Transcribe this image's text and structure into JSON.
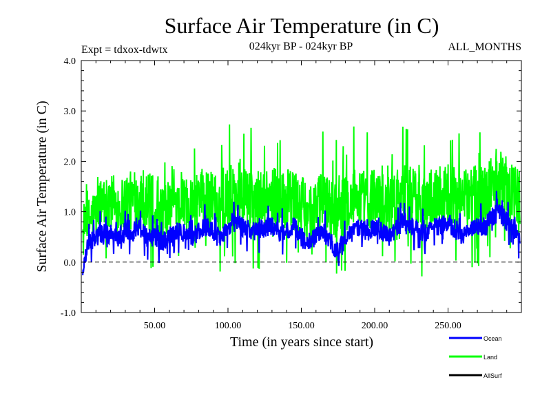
{
  "chart_data": {
    "type": "line",
    "title": "Surface Air Temperature (in C)",
    "subtitle_left": "Expt = tdxox-tdwtx",
    "subtitle_center": "024kyr BP - 024kyr BP",
    "subtitle_right": "ALL_MONTHS",
    "xlabel": "Time (in years since start)",
    "ylabel": "Surface Air Temperature (in C)",
    "xlim": [
      0,
      300
    ],
    "ylim": [
      -1.0,
      4.0
    ],
    "x_ticks": [
      50,
      100,
      150,
      200,
      250
    ],
    "x_tick_labels": [
      "50.00",
      "100.00",
      "150.00",
      "200.00",
      "250.00"
    ],
    "y_ticks": [
      -1.0,
      0.0,
      1.0,
      2.0,
      3.0,
      4.0
    ],
    "y_tick_labels": [
      "-1.0",
      "0.0",
      "1.0",
      "2.0",
      "3.0",
      "4.0"
    ],
    "zero_line": {
      "value": 0.0,
      "style": "dashed"
    },
    "series": [
      {
        "name": "Land",
        "color": "#00ff00",
        "x": [
          1,
          5,
          10,
          15,
          20,
          25,
          30,
          35,
          40,
          45,
          50,
          55,
          60,
          65,
          70,
          75,
          80,
          85,
          90,
          95,
          100,
          105,
          110,
          115,
          120,
          125,
          130,
          135,
          140,
          145,
          150,
          155,
          160,
          165,
          170,
          175,
          180,
          185,
          190,
          195,
          200,
          205,
          210,
          215,
          220,
          225,
          230,
          235,
          240,
          245,
          250,
          255,
          260,
          265,
          270,
          275,
          280,
          285,
          290,
          295,
          299
        ],
        "mean": [
          0.5,
          0.8,
          1.0,
          1.2,
          1.2,
          1.1,
          1.2,
          1.2,
          1.3,
          1.2,
          1.1,
          1.0,
          1.1,
          1.2,
          1.2,
          1.1,
          1.2,
          1.3,
          1.2,
          1.1,
          1.3,
          1.4,
          1.3,
          1.2,
          1.2,
          1.3,
          1.3,
          1.2,
          1.2,
          1.3,
          1.1,
          1.0,
          1.1,
          1.2,
          1.1,
          1.0,
          1.2,
          1.3,
          1.3,
          1.2,
          1.3,
          1.2,
          1.1,
          1.3,
          1.4,
          1.3,
          1.2,
          1.2,
          1.3,
          1.3,
          1.4,
          1.3,
          1.2,
          1.3,
          1.4,
          1.3,
          1.5,
          1.6,
          1.5,
          1.4,
          1.3
        ],
        "spread": [
          0.9,
          0.9,
          1.0,
          1.0,
          1.1,
          1.1,
          1.1,
          1.1,
          1.2,
          1.1,
          1.1,
          1.0,
          1.0,
          1.1,
          1.1,
          1.1,
          1.0,
          1.1,
          1.1,
          1.1,
          1.1,
          1.2,
          1.1,
          1.1,
          1.1,
          1.1,
          1.2,
          1.1,
          1.1,
          1.1,
          1.1,
          1.1,
          1.1,
          1.1,
          1.1,
          1.1,
          1.1,
          1.1,
          1.1,
          1.1,
          1.1,
          1.1,
          1.1,
          1.1,
          1.1,
          1.1,
          1.1,
          1.1,
          1.1,
          1.1,
          1.1,
          1.1,
          1.1,
          1.1,
          1.1,
          1.1,
          1.1,
          1.1,
          1.1,
          1.1,
          1.1
        ]
      },
      {
        "name": "Ocean",
        "color": "#0000ff",
        "x": [
          1,
          5,
          10,
          15,
          20,
          25,
          30,
          35,
          40,
          45,
          50,
          55,
          60,
          65,
          70,
          75,
          80,
          85,
          90,
          95,
          100,
          105,
          110,
          115,
          120,
          125,
          130,
          135,
          140,
          145,
          150,
          155,
          160,
          165,
          170,
          175,
          180,
          185,
          190,
          195,
          200,
          205,
          210,
          215,
          220,
          225,
          230,
          235,
          240,
          245,
          250,
          255,
          260,
          265,
          270,
          275,
          280,
          285,
          290,
          295,
          299
        ],
        "mean": [
          -0.2,
          0.4,
          0.5,
          0.6,
          0.5,
          0.5,
          0.6,
          0.6,
          0.7,
          0.5,
          0.5,
          0.4,
          0.5,
          0.6,
          0.6,
          0.5,
          0.6,
          0.7,
          0.6,
          0.5,
          0.7,
          0.8,
          0.7,
          0.6,
          0.6,
          0.7,
          0.7,
          0.6,
          0.6,
          0.7,
          0.5,
          0.4,
          0.5,
          0.6,
          0.4,
          0.2,
          0.5,
          0.6,
          0.7,
          0.6,
          0.7,
          0.6,
          0.5,
          0.7,
          0.8,
          0.7,
          0.6,
          0.6,
          0.7,
          0.7,
          0.8,
          0.6,
          0.5,
          0.6,
          0.7,
          0.7,
          0.9,
          1.0,
          0.8,
          0.7,
          0.5
        ],
        "spread": [
          0.3,
          0.35,
          0.35,
          0.35,
          0.35,
          0.35,
          0.35,
          0.35,
          0.35,
          0.35,
          0.35,
          0.35,
          0.35,
          0.35,
          0.35,
          0.35,
          0.35,
          0.35,
          0.35,
          0.35,
          0.35,
          0.35,
          0.35,
          0.35,
          0.35,
          0.35,
          0.35,
          0.35,
          0.35,
          0.35,
          0.35,
          0.35,
          0.35,
          0.35,
          0.35,
          0.35,
          0.35,
          0.35,
          0.35,
          0.35,
          0.35,
          0.35,
          0.35,
          0.35,
          0.35,
          0.35,
          0.35,
          0.35,
          0.35,
          0.35,
          0.35,
          0.35,
          0.35,
          0.35,
          0.35,
          0.35,
          0.35,
          0.35,
          0.35,
          0.35,
          0.35
        ]
      },
      {
        "name": "AllSurf",
        "color": "#000000",
        "x": [],
        "mean": [],
        "spread": []
      }
    ],
    "legend": {
      "placement": "bottom-right",
      "entries": [
        {
          "label": "Ocean",
          "color": "#0000ff"
        },
        {
          "label": "Land",
          "color": "#00ff00"
        },
        {
          "label": "AllSurf",
          "color": "#000000"
        }
      ]
    }
  }
}
